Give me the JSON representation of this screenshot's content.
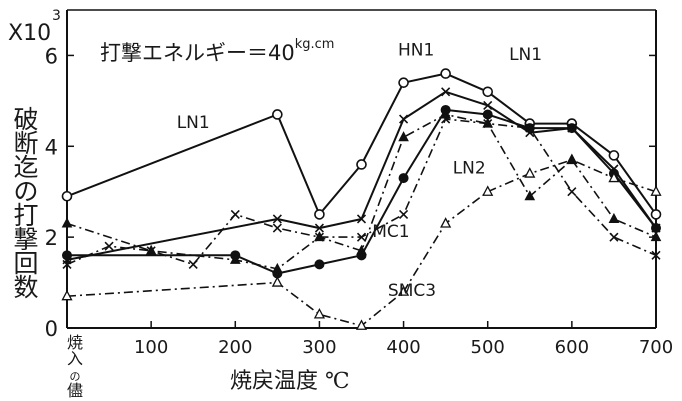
{
  "chart_data": {
    "type": "line",
    "title": "打撃エネルギー＝40",
    "title_unit": "kg.cm",
    "xlabel": "焼戻温度 ℃",
    "ylabel": "破断迄の打撃回数",
    "y_multiplier_base": "X10",
    "y_multiplier_exp": "3",
    "x_categories": [
      "焼入の儘",
      "100",
      "200",
      "300",
      "400",
      "500",
      "600",
      "700"
    ],
    "y_ticks": [
      "0",
      "2",
      "4",
      "6"
    ],
    "xlim": [
      0,
      700
    ],
    "ylim": [
      0,
      7
    ],
    "grid": false,
    "series": [
      {
        "name": "LN1",
        "marker": "open-circle",
        "dash": "solid",
        "x": [
          0,
          250,
          300,
          350,
          400,
          450,
          500,
          550,
          600,
          650,
          700
        ],
        "y": [
          2.9,
          4.7,
          2.5,
          3.6,
          5.4,
          5.6,
          5.2,
          4.5,
          4.5,
          3.8,
          2.5
        ]
      },
      {
        "name": "HN1",
        "marker": "cross",
        "dash": "solid",
        "x": [
          0,
          250,
          300,
          350,
          400,
          450,
          500,
          550,
          600,
          650,
          700
        ],
        "y": [
          1.5,
          2.4,
          2.2,
          2.4,
          4.6,
          5.2,
          4.9,
          4.3,
          4.4,
          3.5,
          2.2
        ]
      },
      {
        "name": "LN2",
        "marker": "filled-circle",
        "dash": "solid",
        "x": [
          0,
          200,
          250,
          300,
          350,
          400,
          450,
          500,
          550,
          600,
          650,
          700
        ],
        "y": [
          1.6,
          1.6,
          1.2,
          1.4,
          1.6,
          3.3,
          4.8,
          4.7,
          4.4,
          4.4,
          3.4,
          2.2
        ]
      },
      {
        "name": "MC1",
        "marker": "cross",
        "dash": "dashdot",
        "x": [
          0,
          50,
          100,
          150,
          200,
          250,
          300,
          350,
          400,
          450,
          500,
          550,
          600,
          650,
          700
        ],
        "y": [
          1.4,
          1.8,
          1.7,
          1.4,
          2.5,
          2.2,
          2.0,
          2.0,
          2.5,
          4.6,
          4.5,
          4.4,
          3.0,
          2.0,
          1.6
        ]
      },
      {
        "name": "SMC3",
        "marker": "open-triangle",
        "dash": "dashdot",
        "x": [
          0,
          250,
          300,
          350,
          400,
          450,
          500,
          550,
          600,
          650,
          700
        ],
        "y": [
          0.7,
          1.0,
          0.3,
          0.05,
          0.8,
          2.3,
          3.0,
          3.4,
          3.7,
          3.3,
          3.0
        ]
      },
      {
        "name": "",
        "marker": "filled-triangle",
        "dash": "dashdot",
        "x": [
          0,
          100,
          200,
          250,
          300,
          350,
          400,
          450,
          500,
          550,
          600,
          650,
          700
        ],
        "y": [
          2.3,
          1.7,
          1.5,
          1.3,
          2.0,
          1.7,
          4.2,
          4.7,
          4.5,
          2.9,
          3.7,
          2.4,
          2.0
        ]
      }
    ],
    "annotations": [
      {
        "text": "LN1",
        "x": 150,
        "y": 4.4
      },
      {
        "text": "HN1",
        "x": 415,
        "y": 6.0
      },
      {
        "text": "LN1",
        "x": 545,
        "y": 5.9
      },
      {
        "text": "LN2",
        "x": 478,
        "y": 3.4
      },
      {
        "text": "MC1",
        "x": 385,
        "y": 2.0
      },
      {
        "text": "SMC3",
        "x": 410,
        "y": 0.7
      }
    ]
  }
}
